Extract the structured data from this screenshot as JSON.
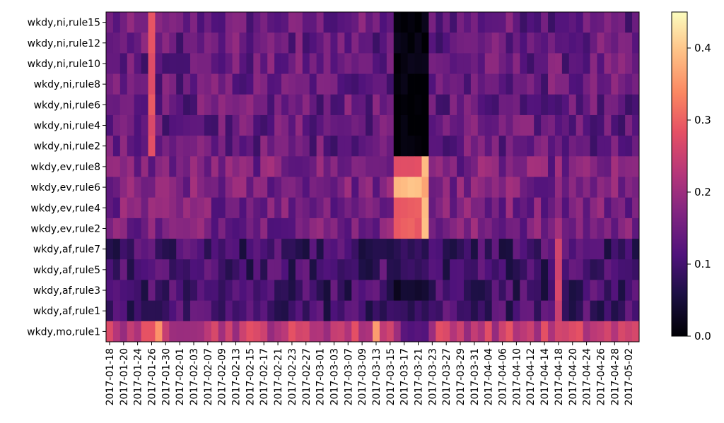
{
  "chart_data": {
    "type": "heatmap",
    "title": "",
    "xlabel": "",
    "ylabel": "",
    "colormap": "magma",
    "color_range": [
      0.0,
      0.45
    ],
    "colorbar_ticks": [
      {
        "value": 0.0,
        "label": "0.0"
      },
      {
        "value": 0.1,
        "label": "0.1"
      },
      {
        "value": 0.2,
        "label": "0.2"
      },
      {
        "value": 0.3,
        "label": "0.3"
      },
      {
        "value": 0.4,
        "label": "0.4"
      }
    ],
    "y_tick_labels": [
      "wkdy,ni,rule15",
      "wkdy,ni,rule12",
      "wkdy,ni,rule10",
      "wkdy,ni,rule8",
      "wkdy,ni,rule6",
      "wkdy,ni,rule4",
      "wkdy,ni,rule2",
      "wkdy,ev,rule8",
      "wkdy,ev,rule6",
      "wkdy,ev,rule4",
      "wkdy,ev,rule2",
      "wkdy,af,rule7",
      "wkdy,af,rule5",
      "wkdy,af,rule3",
      "wkdy,af,rule1",
      "wkdy,mo,rule1"
    ],
    "x_tick_labels": [
      "2017-01-18",
      "2017-01-20",
      "2017-01-24",
      "2017-01-26",
      "2017-01-30",
      "2017-02-01",
      "2017-02-03",
      "2017-02-07",
      "2017-02-09",
      "2017-02-13",
      "2017-02-15",
      "2017-02-17",
      "2017-02-21",
      "2017-02-23",
      "2017-02-27",
      "2017-03-01",
      "2017-03-03",
      "2017-03-07",
      "2017-03-09",
      "2017-03-13",
      "2017-03-15",
      "2017-03-17",
      "2017-03-21",
      "2017-03-23",
      "2017-03-27",
      "2017-03-29",
      "2017-03-31",
      "2017-04-04",
      "2017-04-06",
      "2017-04-10",
      "2017-04-12",
      "2017-04-14",
      "2017-04-18",
      "2017-04-20",
      "2017-04-24",
      "2017-04-26",
      "2017-04-28",
      "2017-05-02"
    ],
    "columns": [
      "2017-01-18",
      "2017-01-19",
      "2017-01-20",
      "2017-01-23",
      "2017-01-24",
      "2017-01-25",
      "2017-01-26",
      "2017-01-27",
      "2017-01-30",
      "2017-01-31",
      "2017-02-01",
      "2017-02-02",
      "2017-02-03",
      "2017-02-06",
      "2017-02-07",
      "2017-02-08",
      "2017-02-09",
      "2017-02-10",
      "2017-02-13",
      "2017-02-14",
      "2017-02-15",
      "2017-02-16",
      "2017-02-17",
      "2017-02-20",
      "2017-02-21",
      "2017-02-22",
      "2017-02-23",
      "2017-02-24",
      "2017-02-27",
      "2017-02-28",
      "2017-03-01",
      "2017-03-02",
      "2017-03-03",
      "2017-03-06",
      "2017-03-07",
      "2017-03-08",
      "2017-03-09",
      "2017-03-10",
      "2017-03-13",
      "2017-03-14",
      "2017-03-15",
      "2017-03-16",
      "2017-03-17",
      "2017-03-20",
      "2017-03-21",
      "2017-03-22",
      "2017-03-23",
      "2017-03-24",
      "2017-03-27",
      "2017-03-28",
      "2017-03-29",
      "2017-03-30",
      "2017-03-31",
      "2017-04-03",
      "2017-04-04",
      "2017-04-05",
      "2017-04-06",
      "2017-04-07",
      "2017-04-10",
      "2017-04-11",
      "2017-04-12",
      "2017-04-13",
      "2017-04-14",
      "2017-04-17",
      "2017-04-18",
      "2017-04-19",
      "2017-04-20",
      "2017-04-21",
      "2017-04-24",
      "2017-04-25",
      "2017-04-26",
      "2017-04-27",
      "2017-04-28",
      "2017-05-01",
      "2017-05-02",
      "2017-05-03"
    ],
    "band_rows": {
      "ni": [
        0,
        6
      ],
      "ev": [
        7,
        10
      ],
      "af": [
        11,
        14
      ],
      "mo": [
        15,
        15
      ]
    },
    "band_levels": {
      "ni": 0.14,
      "ev": 0.16,
      "af": 0.1,
      "mo": 0.24
    },
    "overrides": [
      {
        "rows": [
          0,
          6
        ],
        "col_range": [
          41,
          45
        ],
        "value": 0.01
      },
      {
        "rows": [
          4,
          6
        ],
        "col_range": [
          41,
          45
        ],
        "value": 0.0
      },
      {
        "rows": [
          7,
          7
        ],
        "col_range": [
          41,
          44
        ],
        "value": 0.28
      },
      {
        "rows": [
          8,
          8
        ],
        "col_range": [
          41,
          44
        ],
        "value": 0.4
      },
      {
        "rows": [
          9,
          10
        ],
        "col_range": [
          41,
          44
        ],
        "value": 0.3
      },
      {
        "rows": [
          7,
          10
        ],
        "col_range": [
          45,
          45
        ],
        "value": 0.38
      },
      {
        "rows": [
          11,
          14
        ],
        "col_range": [
          41,
          45
        ],
        "value": 0.08
      },
      {
        "rows": [
          13,
          13
        ],
        "col_range": [
          41,
          45
        ],
        "value": 0.03
      },
      {
        "rows": [
          0,
          6
        ],
        "col_range": [
          6,
          6
        ],
        "value": 0.28
      },
      {
        "rows": [
          15,
          15
        ],
        "col_range": [
          7,
          7
        ],
        "value": 0.36
      },
      {
        "rows": [
          15,
          15
        ],
        "col_range": [
          38,
          38
        ],
        "value": 0.36
      },
      {
        "rows": [
          11,
          14
        ],
        "col_range": [
          64,
          64
        ],
        "value": 0.26
      },
      {
        "rows": [
          15,
          15
        ],
        "col_range": [
          42,
          45
        ],
        "value": 0.12
      }
    ]
  }
}
